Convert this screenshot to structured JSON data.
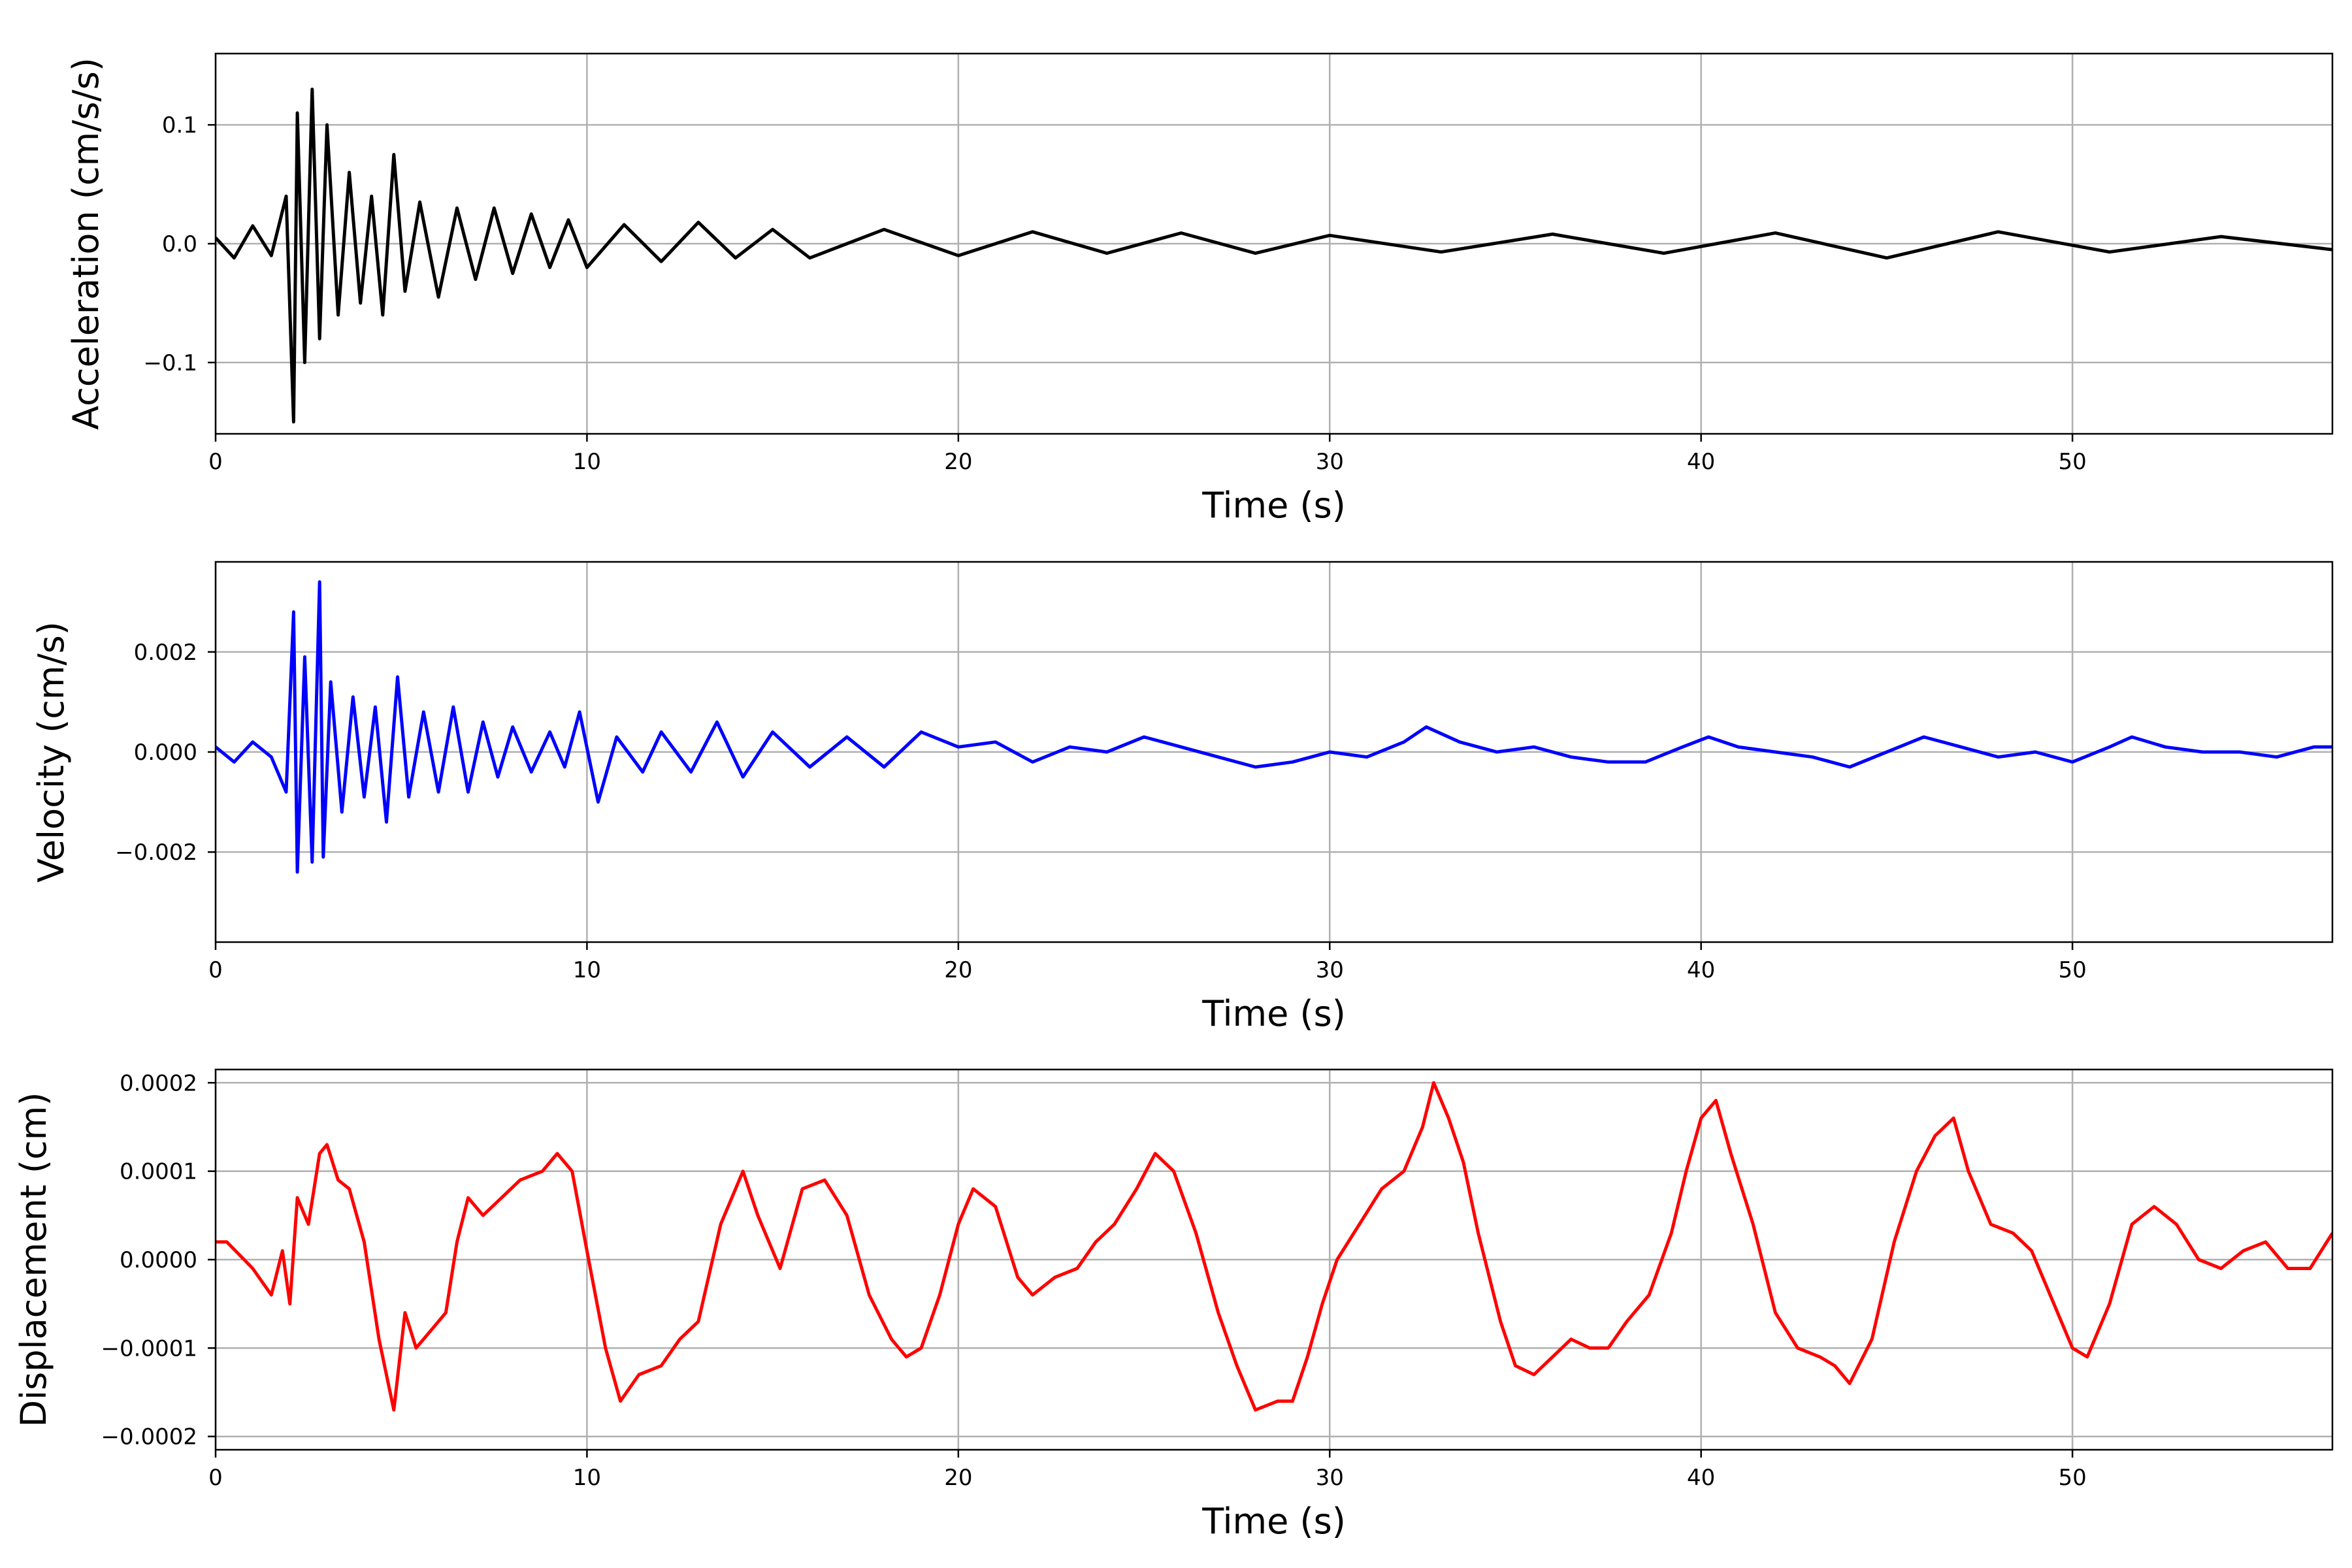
{
  "chart_data": [
    {
      "type": "line",
      "ylabel": "Acceleration (cm/s/s)",
      "xlabel": "Time (s)",
      "xlim": [
        0,
        57
      ],
      "ylim": [
        -0.16,
        0.16
      ],
      "xticks": [
        0,
        10,
        20,
        30,
        40,
        50
      ],
      "yticks": [
        -0.1,
        0.0,
        0.1
      ],
      "ytick_labels": [
        "−0.1",
        "0.0",
        "0.1"
      ],
      "grid": true,
      "series": [
        {
          "color": "#000000",
          "x": [
            0,
            0.5,
            1.0,
            1.5,
            1.9,
            2.1,
            2.2,
            2.4,
            2.6,
            2.8,
            3.0,
            3.3,
            3.6,
            3.9,
            4.2,
            4.5,
            4.8,
            5.1,
            5.5,
            6.0,
            6.5,
            7.0,
            7.5,
            8.0,
            8.5,
            9.0,
            9.5,
            10.0,
            11,
            12,
            13,
            14,
            15,
            16,
            18,
            20,
            22,
            24,
            26,
            28,
            30,
            33,
            36,
            39,
            42,
            45,
            48,
            51,
            54,
            57
          ],
          "y": [
            0.005,
            -0.012,
            0.015,
            -0.01,
            0.04,
            -0.15,
            0.11,
            -0.1,
            0.13,
            -0.08,
            0.1,
            -0.06,
            0.06,
            -0.05,
            0.04,
            -0.06,
            0.075,
            -0.04,
            0.035,
            -0.045,
            0.03,
            -0.03,
            0.03,
            -0.025,
            0.025,
            -0.02,
            0.02,
            -0.02,
            0.016,
            -0.015,
            0.018,
            -0.012,
            0.012,
            -0.012,
            0.012,
            -0.01,
            0.01,
            -0.008,
            0.009,
            -0.008,
            0.007,
            -0.007,
            0.008,
            -0.008,
            0.009,
            -0.012,
            0.01,
            -0.007,
            0.006,
            -0.005
          ]
        }
      ]
    },
    {
      "type": "line",
      "ylabel": "Velocity (cm/s)",
      "xlabel": "Time (s)",
      "xlim": [
        0,
        57
      ],
      "ylim": [
        -0.0038,
        0.0038
      ],
      "xticks": [
        0,
        10,
        20,
        30,
        40,
        50
      ],
      "yticks": [
        -0.002,
        0.0,
        0.002
      ],
      "ytick_labels": [
        "−0.002",
        "0.000",
        "0.002"
      ],
      "grid": true,
      "series": [
        {
          "color": "#0000ff",
          "x": [
            0,
            0.5,
            1.0,
            1.5,
            1.9,
            2.1,
            2.2,
            2.4,
            2.6,
            2.8,
            2.9,
            3.1,
            3.4,
            3.7,
            4.0,
            4.3,
            4.6,
            4.9,
            5.2,
            5.6,
            6.0,
            6.4,
            6.8,
            7.2,
            7.6,
            8.0,
            8.5,
            9.0,
            9.4,
            9.8,
            10.3,
            10.8,
            11.5,
            12,
            12.8,
            13.5,
            14.2,
            15,
            16,
            17,
            18,
            19,
            20,
            21,
            22,
            23,
            24,
            25,
            26,
            27,
            28,
            29,
            30,
            31,
            32,
            32.6,
            33.5,
            34.5,
            35.5,
            36.5,
            37.5,
            38.5,
            39.5,
            40.2,
            41,
            42,
            43,
            44,
            45,
            46,
            47,
            48,
            49,
            50,
            51,
            51.6,
            52.5,
            53.5,
            54.5,
            55.5,
            56.5,
            57
          ],
          "y": [
            0.0001,
            -0.0002,
            0.0002,
            -0.0001,
            -0.0008,
            0.0028,
            -0.0024,
            0.0019,
            -0.0022,
            0.0034,
            -0.0021,
            0.0014,
            -0.0012,
            0.0011,
            -0.0009,
            0.0009,
            -0.0014,
            0.0015,
            -0.0009,
            0.0008,
            -0.0008,
            0.0009,
            -0.0008,
            0.0006,
            -0.0005,
            0.0005,
            -0.0004,
            0.0004,
            -0.0003,
            0.0008,
            -0.001,
            0.0003,
            -0.0004,
            0.0004,
            -0.0004,
            0.0006,
            -0.0005,
            0.0004,
            -0.0003,
            0.0003,
            -0.0003,
            0.0004,
            0.0001,
            0.0002,
            -0.0002,
            0.0001,
            0.0,
            0.0003,
            0.0001,
            -0.0001,
            -0.0003,
            -0.0002,
            0.0,
            -0.0001,
            0.0002,
            0.0005,
            0.0002,
            0.0,
            0.0001,
            -0.0001,
            -0.0002,
            -0.0002,
            0.0001,
            0.0003,
            0.0001,
            0.0,
            -0.0001,
            -0.0003,
            0.0,
            0.0003,
            0.0001,
            -0.0001,
            0.0,
            -0.0002,
            0.0001,
            0.0003,
            0.0001,
            0.0,
            0.0,
            -0.0001,
            0.0001,
            0.0001
          ]
        }
      ]
    },
    {
      "type": "line",
      "ylabel": "Displacement (cm)",
      "xlabel": "Time (s)",
      "xlim": [
        0,
        57
      ],
      "ylim": [
        -0.000215,
        0.000215
      ],
      "xticks": [
        0,
        10,
        20,
        30,
        40,
        50
      ],
      "yticks": [
        -0.0002,
        -0.0001,
        0.0,
        0.0001,
        0.0002
      ],
      "ytick_labels": [
        "−0.0002",
        "−0.0001",
        "0.0000",
        "0.0001",
        "0.0002"
      ],
      "grid": true,
      "series": [
        {
          "color": "#ff0000",
          "x": [
            0,
            0.3,
            1.0,
            1.5,
            1.8,
            2.0,
            2.2,
            2.5,
            2.8,
            3.0,
            3.3,
            3.6,
            4.0,
            4.4,
            4.8,
            5.1,
            5.4,
            5.8,
            6.2,
            6.5,
            6.8,
            7.2,
            7.7,
            8.2,
            8.8,
            9.2,
            9.6,
            10.0,
            10.5,
            10.9,
            11.4,
            12.0,
            12.5,
            13.0,
            13.6,
            14.2,
            14.6,
            15.2,
            15.8,
            16.4,
            17.0,
            17.6,
            18.2,
            18.6,
            19.0,
            19.5,
            20.0,
            20.4,
            21.0,
            21.6,
            22.0,
            22.6,
            23.2,
            23.7,
            24.2,
            24.8,
            25.3,
            25.8,
            26.4,
            27.0,
            27.5,
            28.0,
            28.6,
            29.0,
            29.4,
            29.8,
            30.2,
            30.8,
            31.4,
            32.0,
            32.5,
            32.8,
            33.2,
            33.6,
            34.0,
            34.6,
            35.0,
            35.5,
            36.0,
            36.5,
            37.0,
            37.5,
            38.0,
            38.6,
            39.2,
            39.6,
            40.0,
            40.4,
            40.8,
            41.4,
            42.0,
            42.6,
            43.2,
            43.6,
            44.0,
            44.6,
            45.2,
            45.8,
            46.3,
            46.8,
            47.2,
            47.8,
            48.4,
            48.9,
            49.4,
            50.0,
            50.4,
            51.0,
            51.6,
            52.2,
            52.8,
            53.4,
            54.0,
            54.6,
            55.2,
            55.8,
            56.4,
            57.0
          ],
          "y": [
            2e-05,
            2e-05,
            -1e-05,
            -4e-05,
            1e-05,
            -5e-05,
            7e-05,
            4e-05,
            0.00012,
            0.00013,
            9e-05,
            8e-05,
            2e-05,
            -9e-05,
            -0.00017,
            -6e-05,
            -0.0001,
            -8e-05,
            -6e-05,
            2e-05,
            7e-05,
            5e-05,
            7e-05,
            9e-05,
            0.0001,
            0.00012,
            0.0001,
            1e-05,
            -0.0001,
            -0.00016,
            -0.00013,
            -0.00012,
            -9e-05,
            -7e-05,
            4e-05,
            0.0001,
            5e-05,
            -1e-05,
            8e-05,
            9e-05,
            5e-05,
            -4e-05,
            -9e-05,
            -0.00011,
            -0.0001,
            -4e-05,
            4e-05,
            8e-05,
            6e-05,
            -2e-05,
            -4e-05,
            -2e-05,
            -1e-05,
            2e-05,
            4e-05,
            8e-05,
            0.00012,
            0.0001,
            3e-05,
            -6e-05,
            -0.00012,
            -0.00017,
            -0.00016,
            -0.00016,
            -0.00011,
            -5e-05,
            0.0,
            4e-05,
            8e-05,
            0.0001,
            0.00015,
            0.0002,
            0.00016,
            0.00011,
            3e-05,
            -7e-05,
            -0.00012,
            -0.00013,
            -0.00011,
            -9e-05,
            -0.0001,
            -0.0001,
            -7e-05,
            -4e-05,
            3e-05,
            0.0001,
            0.00016,
            0.00018,
            0.00012,
            4e-05,
            -6e-05,
            -0.0001,
            -0.00011,
            -0.00012,
            -0.00014,
            -9e-05,
            2e-05,
            0.0001,
            0.00014,
            0.00016,
            0.0001,
            4e-05,
            3e-05,
            1e-05,
            -4e-05,
            -0.0001,
            -0.00011,
            -5e-05,
            4e-05,
            6e-05,
            4e-05,
            0.0,
            -1e-05,
            1e-05,
            2e-05,
            -1e-05,
            -1e-05,
            3e-05
          ]
        }
      ]
    }
  ]
}
